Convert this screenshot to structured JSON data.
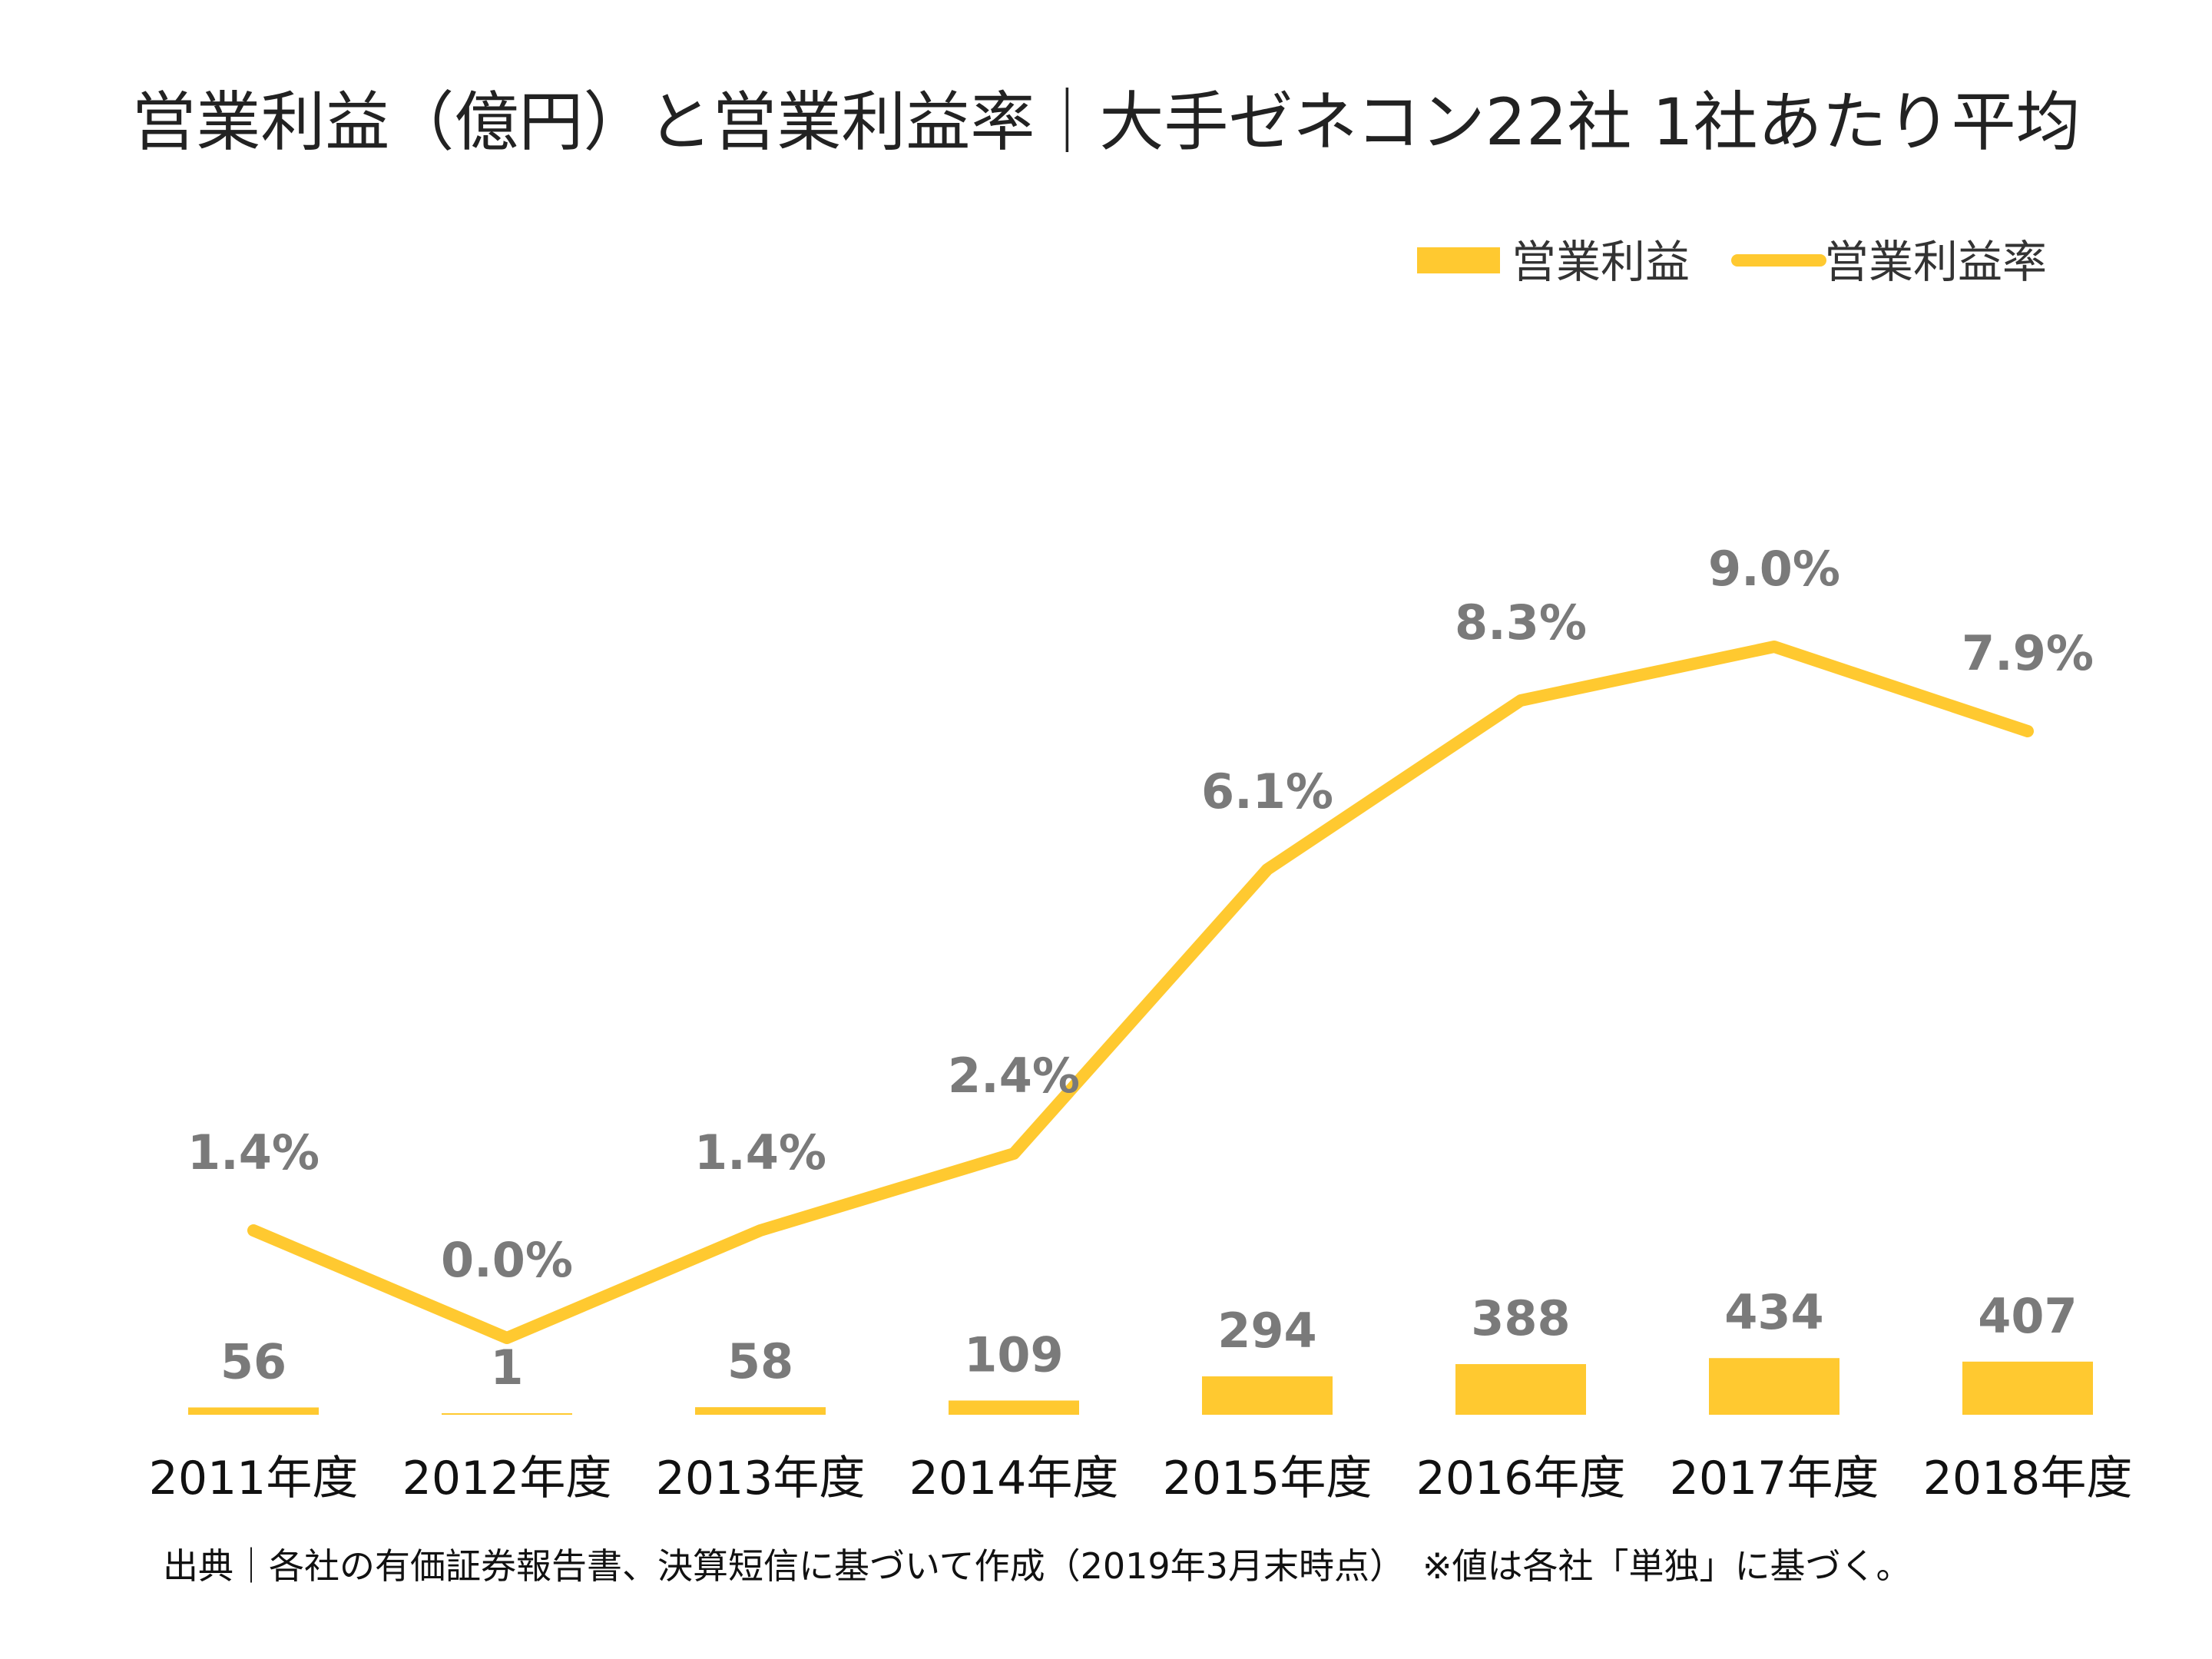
{
  "title": "営業利益（億円）と営業利益率｜大手ゼネコン22社 1社あたり平均",
  "legend": {
    "bar_label": "営業利益",
    "line_label": "営業利益率"
  },
  "source": "出典｜各社の有価証券報告書、決算短信に基づいて作成（2019年3月末時点）　※値は各社「単独」に基づく。",
  "colors": {
    "accent": "#FFC930",
    "label": "#7A7A7A"
  },
  "chart_data": {
    "type": "bar+line",
    "categories": [
      "2011年度",
      "2012年度",
      "2013年度",
      "2014年度",
      "2015年度",
      "2016年度",
      "2017年度",
      "2018年度"
    ],
    "series": [
      {
        "name": "営業利益",
        "type": "bar",
        "axis": "left",
        "values": [
          56,
          1,
          58,
          109,
          294,
          388,
          434,
          407
        ],
        "labels": [
          "56",
          "1",
          "58",
          "109",
          "294",
          "388",
          "434",
          "407"
        ]
      },
      {
        "name": "営業利益率",
        "type": "line",
        "axis": "right",
        "values": [
          1.4,
          0.0,
          1.4,
          2.4,
          6.1,
          8.3,
          9.0,
          7.9
        ],
        "labels": [
          "1.4%",
          "0.0%",
          "1.4%",
          "2.4%",
          "6.1%",
          "8.3%",
          "9.0%",
          "7.9%"
        ]
      }
    ],
    "legend_position": "top-right",
    "grid": false
  }
}
